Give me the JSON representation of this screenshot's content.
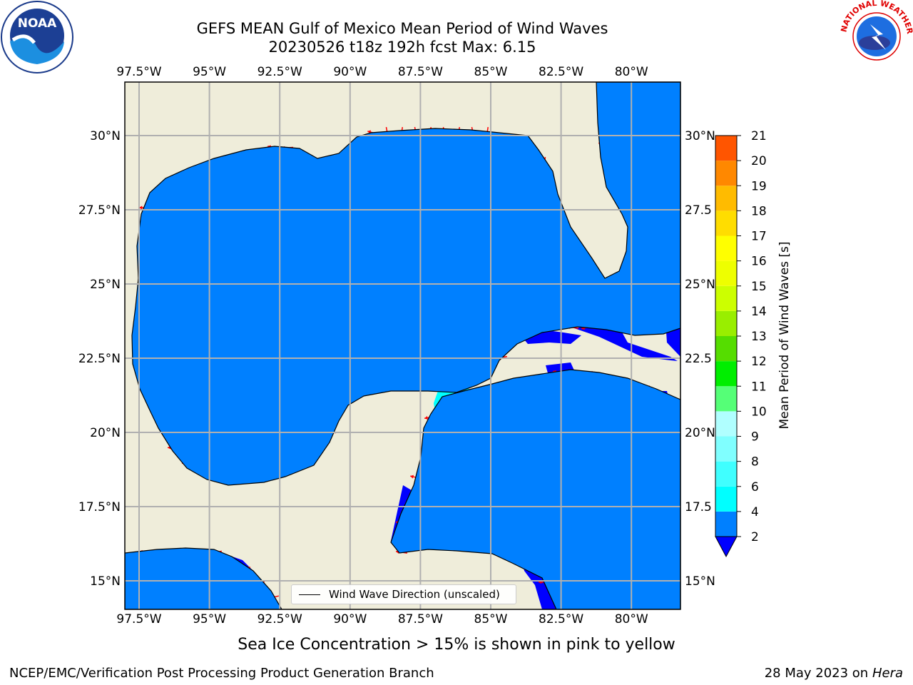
{
  "title_line1": "GEFS MEAN Gulf of Mexico Mean Period of Wind Waves",
  "title_line2": "20230526 t18z 192h fcst   Max: 6.15",
  "map": {
    "lon_labels": [
      "97.5°W",
      "95°W",
      "92.5°W",
      "90°W",
      "87.5°W",
      "85°W",
      "82.5°W",
      "80°W"
    ],
    "lat_labels_left": [
      "30°N",
      "27.5°N",
      "25°N",
      "22.5°N",
      "20°N",
      "17.5°N",
      "15°N"
    ],
    "lat_labels_right": [
      "30°N",
      "27.5",
      "25°N",
      "22.5",
      "20°N",
      "17.5",
      "15°N"
    ],
    "legend_label": "Wind Wave Direction (unscaled)",
    "land_color": "#efedda",
    "ocean_color": "#0080ff",
    "arrow_color": "#ff0000"
  },
  "colorbar": {
    "label": "Mean Period of Wind Waves [s]",
    "ticks": [
      "2",
      "4",
      "6",
      "8",
      "9",
      "10",
      "11",
      "12",
      "13",
      "14",
      "15",
      "16",
      "17",
      "18",
      "19",
      "20",
      "21"
    ],
    "colors": [
      "#0080ff",
      "#00ffff",
      "#40ffff",
      "#80ffff",
      "#b0ffff",
      "#55ff77",
      "#00ee00",
      "#55dd00",
      "#99ee00",
      "#ccff00",
      "#eeff00",
      "#ffff00",
      "#ffdd00",
      "#ffbb00",
      "#ff8800",
      "#ff5500",
      "#ff2200",
      "#ff0000"
    ],
    "extend_color": "#0000ff"
  },
  "subtitle": "Sea Ice Concentration > 15% is shown in pink to yellow",
  "footer_left": "NCEP/EMC/Verification Post Processing Product Generation Branch",
  "footer_date": "28 May 2023 on",
  "footer_host": "Hera",
  "logos": {
    "left": "NOAA",
    "right": "NATIONAL WEATHER SERVICE"
  }
}
